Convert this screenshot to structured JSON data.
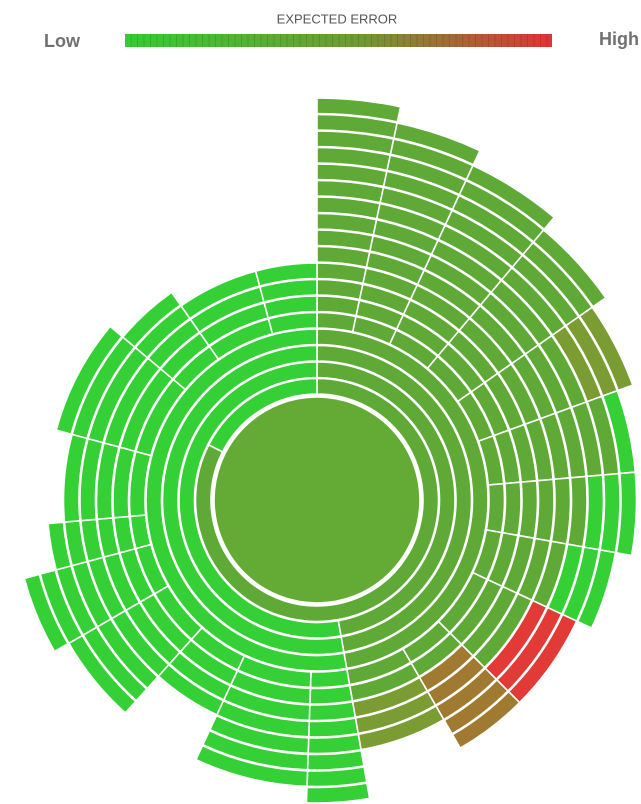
{
  "legend": {
    "title": "EXPECTED ERROR",
    "low": "Low",
    "high": "High"
  }
}
